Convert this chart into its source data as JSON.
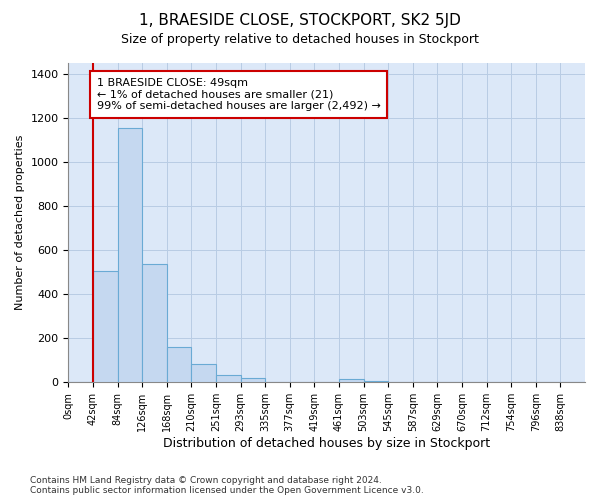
{
  "title": "1, BRAESIDE CLOSE, STOCKPORT, SK2 5JD",
  "subtitle": "Size of property relative to detached houses in Stockport",
  "xlabel": "Distribution of detached houses by size in Stockport",
  "ylabel": "Number of detached properties",
  "bar_labels": [
    "0sqm",
    "42sqm",
    "84sqm",
    "126sqm",
    "168sqm",
    "210sqm",
    "251sqm",
    "293sqm",
    "335sqm",
    "377sqm",
    "419sqm",
    "461sqm",
    "503sqm",
    "545sqm",
    "587sqm",
    "629sqm",
    "670sqm",
    "712sqm",
    "754sqm",
    "796sqm",
    "838sqm"
  ],
  "bar_values": [
    0,
    505,
    1155,
    535,
    160,
    85,
    35,
    20,
    0,
    0,
    0,
    15,
    5,
    2,
    2,
    2,
    0,
    0,
    0,
    0,
    0
  ],
  "bar_color": "#c5d8f0",
  "bar_edge_color": "#6aaad4",
  "ylim": [
    0,
    1450
  ],
  "yticks": [
    0,
    200,
    400,
    600,
    800,
    1000,
    1200,
    1400
  ],
  "property_line_x": 1.0,
  "property_line_color": "#cc0000",
  "annotation_text": "1 BRAESIDE CLOSE: 49sqm\n← 1% of detached houses are smaller (21)\n99% of semi-detached houses are larger (2,492) →",
  "annotation_box_color": "#ffffff",
  "annotation_box_edge": "#cc0000",
  "footnote": "Contains HM Land Registry data © Crown copyright and database right 2024.\nContains public sector information licensed under the Open Government Licence v3.0.",
  "bg_color": "#dce8f8",
  "title_fontsize": 11,
  "subtitle_fontsize": 9
}
